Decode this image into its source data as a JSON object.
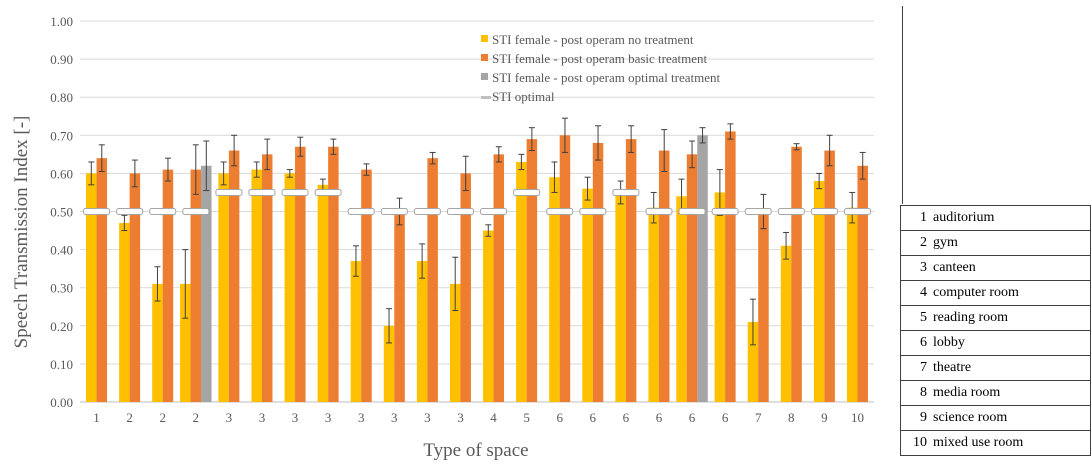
{
  "chart_data": {
    "type": "bar",
    "ylabel": "Speech Transmission Index [-]",
    "xlabel": "Type of space",
    "ylim": [
      0,
      1.0
    ],
    "y_ticks": [
      "0.00",
      "0.10",
      "0.20",
      "0.30",
      "0.40",
      "0.50",
      "0.60",
      "0.70",
      "0.80",
      "0.90",
      "1.00"
    ],
    "grid": "horizontal",
    "legend_position": "top-right",
    "categories": [
      "1",
      "2",
      "2",
      "2",
      "3",
      "3",
      "3",
      "3",
      "3",
      "3",
      "3",
      "3",
      "4",
      "5",
      "6",
      "6",
      "6",
      "6",
      "6",
      "6",
      "7",
      "8",
      "9",
      "10"
    ],
    "series": [
      {
        "name": "STI female - post operam no treatment",
        "color": "#FFC000",
        "values": [
          0.6,
          0.47,
          0.31,
          0.31,
          0.6,
          0.61,
          0.6,
          0.57,
          0.37,
          0.2,
          0.37,
          0.31,
          0.45,
          0.63,
          0.59,
          0.56,
          0.55,
          0.51,
          0.54,
          0.55,
          0.21,
          0.41,
          0.58,
          0.51
        ],
        "errors": [
          0.03,
          0.02,
          0.045,
          0.09,
          0.03,
          0.02,
          0.01,
          0.015,
          0.04,
          0.045,
          0.045,
          0.07,
          0.015,
          0.02,
          0.04,
          0.03,
          0.03,
          0.04,
          0.045,
          0.06,
          0.06,
          0.035,
          0.02,
          0.04
        ]
      },
      {
        "name": "STI female - post operam basic treatment",
        "color": "#ED7D31",
        "values": [
          0.64,
          0.6,
          0.61,
          0.61,
          0.66,
          0.65,
          0.67,
          0.67,
          0.61,
          0.5,
          0.64,
          0.6,
          0.65,
          0.69,
          0.7,
          0.68,
          0.69,
          0.66,
          0.65,
          0.71,
          0.5,
          0.67,
          0.66,
          0.62
        ],
        "errors": [
          0.035,
          0.035,
          0.03,
          0.065,
          0.04,
          0.04,
          0.025,
          0.02,
          0.015,
          0.035,
          0.015,
          0.045,
          0.02,
          0.03,
          0.045,
          0.045,
          0.035,
          0.055,
          0.035,
          0.02,
          0.045,
          0.008,
          0.04,
          0.035
        ]
      },
      {
        "name": "STI female - post operam optimal treatment",
        "color": "#A5A5A5",
        "values": [
          null,
          null,
          null,
          0.62,
          null,
          null,
          null,
          null,
          null,
          null,
          null,
          null,
          null,
          null,
          null,
          null,
          null,
          null,
          0.7,
          null,
          null,
          null,
          null,
          null
        ],
        "errors": [
          null,
          null,
          null,
          0.065,
          null,
          null,
          null,
          null,
          null,
          null,
          null,
          null,
          null,
          null,
          null,
          null,
          null,
          null,
          0.02,
          null,
          null,
          null,
          null,
          null
        ]
      },
      {
        "name": "STI optimal",
        "color": "#BFBFBF",
        "marker": "dash",
        "values": [
          0.5,
          0.5,
          0.5,
          0.5,
          0.55,
          0.55,
          0.55,
          0.55,
          0.5,
          0.5,
          0.5,
          0.5,
          0.5,
          0.55,
          0.5,
          0.5,
          0.55,
          0.5,
          0.5,
          0.5,
          0.5,
          0.5,
          0.5,
          0.5
        ]
      }
    ]
  },
  "space_types": [
    {
      "num": "1",
      "label": "auditorium"
    },
    {
      "num": "2",
      "label": "gym"
    },
    {
      "num": "3",
      "label": "canteen"
    },
    {
      "num": "4",
      "label": "computer room"
    },
    {
      "num": "5",
      "label": "reading room"
    },
    {
      "num": "6",
      "label": "lobby"
    },
    {
      "num": "7",
      "label": "theatre"
    },
    {
      "num": "8",
      "label": "media room"
    },
    {
      "num": "9",
      "label": "science room"
    },
    {
      "num": "10",
      "label": "mixed use room"
    }
  ]
}
